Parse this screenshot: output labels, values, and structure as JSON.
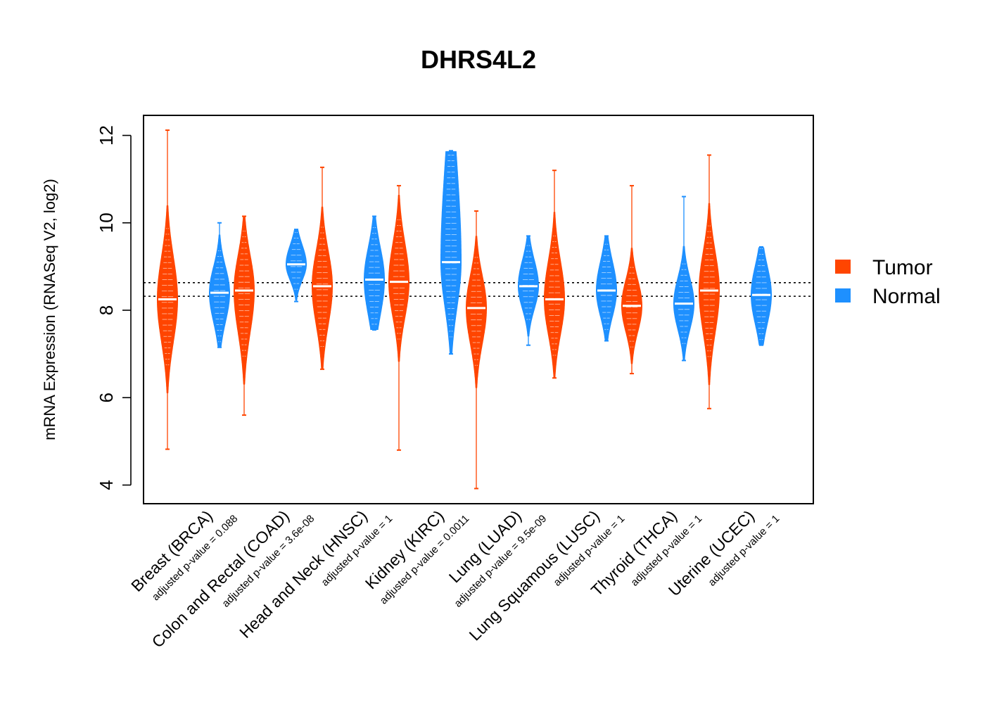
{
  "chart_data": {
    "type": "violin",
    "title": "DHRS4L2",
    "ylabel": "mRNA Expression (RNASeq V2, log2)",
    "xlabel": "",
    "ylim": [
      3.6,
      12.5
    ],
    "yticks": [
      4,
      6,
      8,
      10,
      12
    ],
    "reference_lines": [
      8.32,
      8.63
    ],
    "grid": false,
    "legend_position": "right",
    "colors": {
      "Tumor": "#ff4500",
      "Normal": "#1e90ff"
    },
    "series": [
      {
        "name": "Tumor",
        "color": "#ff4500"
      },
      {
        "name": "Normal",
        "color": "#1e90ff"
      }
    ],
    "categories": [
      {
        "label": "Breast (BRCA)",
        "pvalue_label": "adjusted p-value = 0.088",
        "tumor": {
          "median": 8.25,
          "min": 4.82,
          "max": 12.12,
          "q1": 7.6,
          "q3": 8.9
        },
        "normal": {
          "median": 8.4,
          "min": 7.15,
          "max": 10.0,
          "q1": 7.95,
          "q3": 8.8
        }
      },
      {
        "label": "Colon and Rectal (COAD)",
        "pvalue_label": "adjusted p-value = 3.6e-08",
        "tumor": {
          "median": 8.45,
          "min": 5.6,
          "max": 10.15,
          "q1": 7.8,
          "q3": 9.0
        },
        "normal": {
          "median": 9.05,
          "min": 8.2,
          "max": 9.85,
          "q1": 8.8,
          "q3": 9.35
        }
      },
      {
        "label": "Head and Neck (HNSC)",
        "pvalue_label": "adjusted p-value = 1",
        "tumor": {
          "median": 8.55,
          "min": 6.65,
          "max": 11.27,
          "q1": 7.95,
          "q3": 9.1
        },
        "normal": {
          "median": 8.7,
          "min": 7.55,
          "max": 10.15,
          "q1": 8.15,
          "q3": 9.2
        }
      },
      {
        "label": "Kidney (KIRC)",
        "pvalue_label": "adjusted p-value = 0.0011",
        "tumor": {
          "median": 8.65,
          "min": 4.8,
          "max": 10.85,
          "q1": 8.1,
          "q3": 9.25
        },
        "normal": {
          "median": 9.1,
          "min": 7.0,
          "max": 11.65,
          "q1": 8.4,
          "q3": 10.6
        }
      },
      {
        "label": "Lung (LUAD)",
        "pvalue_label": "adjusted p-value = 9.5e-09",
        "tumor": {
          "median": 8.05,
          "min": 3.92,
          "max": 10.27,
          "q1": 7.5,
          "q3": 8.55
        },
        "normal": {
          "median": 8.55,
          "min": 7.2,
          "max": 9.7,
          "q1": 8.2,
          "q3": 8.95
        }
      },
      {
        "label": "Lung Squamous (LUSC)",
        "pvalue_label": "adjusted p-value = 1",
        "tumor": {
          "median": 8.25,
          "min": 6.45,
          "max": 11.2,
          "q1": 7.7,
          "q3": 8.85
        },
        "normal": {
          "median": 8.45,
          "min": 7.3,
          "max": 9.7,
          "q1": 8.05,
          "q3": 8.9
        }
      },
      {
        "label": "Thyroid (THCA)",
        "pvalue_label": "adjusted p-value = 1",
        "tumor": {
          "median": 8.1,
          "min": 6.55,
          "max": 10.85,
          "q1": 7.7,
          "q3": 8.5
        },
        "normal": {
          "median": 8.15,
          "min": 6.85,
          "max": 10.6,
          "q1": 7.75,
          "q3": 8.55
        }
      },
      {
        "label": "Uterine (UCEC)",
        "pvalue_label": "adjusted p-value = 1",
        "tumor": {
          "median": 8.45,
          "min": 5.75,
          "max": 11.55,
          "q1": 7.8,
          "q3": 9.05
        },
        "normal": {
          "median": 8.35,
          "min": 7.2,
          "max": 9.45,
          "q1": 7.9,
          "q3": 8.8
        }
      }
    ]
  }
}
